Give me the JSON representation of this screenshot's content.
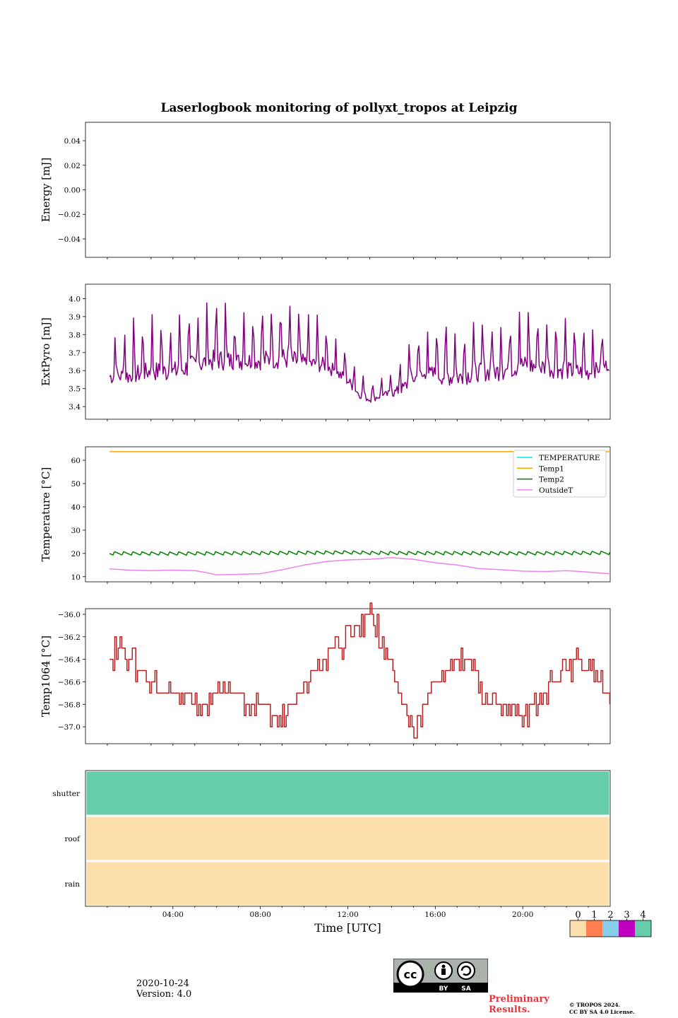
{
  "chart_data": {
    "type": "line",
    "title": "Laserlogbook monitoring of pollyxt_tropos at Leipzig",
    "xlabel": "Time [UTC]",
    "x_ticks": [
      "04:00",
      "08:00",
      "12:00",
      "16:00",
      "20:00"
    ],
    "x_range_hours": [
      0,
      24
    ],
    "panels": [
      {
        "id": "energy",
        "ylabel": "Energy [mJ]",
        "ylim": [
          -0.055,
          0.055
        ],
        "yticks": [
          "0.04",
          "0.02",
          "0.00",
          "−0.02",
          "−0.04"
        ],
        "ytick_values": [
          0.04,
          0.02,
          0.0,
          -0.02,
          -0.04
        ],
        "series": []
      },
      {
        "id": "extpyro",
        "ylabel": "ExtPyro [mJ]",
        "ylim": [
          3.33,
          4.08
        ],
        "yticks": [
          "4.0",
          "3.9",
          "3.8",
          "3.7",
          "3.6",
          "3.5",
          "3.4"
        ],
        "ytick_values": [
          4.0,
          3.9,
          3.8,
          3.7,
          3.6,
          3.5,
          3.4
        ],
        "series": [
          {
            "name": "ExtPyro",
            "color": "#800080",
            "x": [
              1.1,
              2,
              3,
              4,
              5,
              6,
              7,
              8,
              9,
              10,
              11,
              12,
              12.5,
              13,
              13.5,
              14,
              14.5,
              15,
              16,
              17,
              18,
              19,
              20,
              21,
              22,
              23,
              24
            ],
            "y": [
              3.62,
              3.63,
              3.66,
              3.66,
              3.7,
              3.73,
              3.71,
              3.72,
              3.74,
              3.7,
              3.68,
              3.58,
              3.5,
              3.46,
              3.48,
              3.5,
              3.54,
              3.62,
              3.64,
              3.62,
              3.65,
              3.66,
              3.7,
              3.68,
              3.66,
              3.64,
              3.68
            ],
            "amplitude": [
              0.15,
              0.17,
              0.18,
              0.2,
              0.2,
              0.2,
              0.17,
              0.18,
              0.2,
              0.17,
              0.14,
              0.1,
              0.08,
              0.06,
              0.06,
              0.08,
              0.12,
              0.18,
              0.18,
              0.17,
              0.17,
              0.18,
              0.2,
              0.18,
              0.17,
              0.15,
              0.12
            ]
          }
        ]
      },
      {
        "id": "temperature",
        "ylabel": "Temperature [°C]",
        "ylim": [
          7.8,
          65.8
        ],
        "yticks": [
          "60",
          "50",
          "40",
          "30",
          "20",
          "10"
        ],
        "ytick_values": [
          60,
          50,
          40,
          30,
          20,
          10
        ],
        "legend_position": "upper right",
        "series": [
          {
            "name": "TEMPERATURE",
            "color": "#00e5e5",
            "x": [],
            "y": []
          },
          {
            "name": "Temp1",
            "color": "#ffa500",
            "x": [
              1.1,
              24
            ],
            "y": [
              63.7,
              63.7
            ]
          },
          {
            "name": "Temp2",
            "color": "#008000",
            "x": [
              1.1,
              4,
              8,
              11,
              12,
              13,
              14,
              16,
              20,
              24
            ],
            "y": [
              19.7,
              19.6,
              19.8,
              20.0,
              20.1,
              19.9,
              19.8,
              19.8,
              19.7,
              19.9
            ]
          },
          {
            "name": "OutsideT",
            "color": "#ee82ee",
            "x": [
              1.1,
              2,
              3,
              4,
              5,
              5.5,
              6,
              7,
              8,
              9,
              10,
              11,
              12,
              13,
              14,
              15,
              16,
              17,
              18,
              19,
              20,
              21,
              22,
              23,
              24
            ],
            "y": [
              13.4,
              12.8,
              12.6,
              12.8,
              12.6,
              11.8,
              10.8,
              11.0,
              11.3,
              13.0,
              15.0,
              16.5,
              17.2,
              17.5,
              18.2,
              17.5,
              16.0,
              15.0,
              13.5,
              13.0,
              12.4,
              12.2,
              12.6,
              12.0,
              11.2
            ]
          }
        ]
      },
      {
        "id": "temp1064",
        "ylabel": "Temp1064 [°C]",
        "ylim": [
          -37.15,
          -35.95
        ],
        "yticks": [
          "−36.0",
          "−36.2",
          "−36.4",
          "−36.6",
          "−36.8",
          "−37.0"
        ],
        "ytick_values": [
          -36.0,
          -36.2,
          -36.4,
          -36.6,
          -36.8,
          -37.0
        ],
        "series": [
          {
            "name": "Temp1064",
            "color": "#b22222",
            "x": [
              1.1,
              1.5,
              2,
              2.5,
              3,
              3.5,
              4,
              4.5,
              5,
              5.5,
              6,
              6.5,
              7,
              7.5,
              8,
              8.5,
              9,
              9.5,
              10,
              10.5,
              11,
              11.5,
              12,
              12.5,
              13,
              13.5,
              14,
              14.5,
              15,
              15.5,
              16,
              16.5,
              17,
              17.5,
              18,
              18.5,
              19,
              19.5,
              20,
              20.5,
              21,
              21.5,
              22,
              22.5,
              23,
              23.5,
              24
            ],
            "y": [
              -36.4,
              -36.3,
              -36.4,
              -36.5,
              -36.6,
              -36.7,
              -36.7,
              -36.7,
              -36.8,
              -36.8,
              -36.7,
              -36.7,
              -36.7,
              -36.8,
              -36.8,
              -36.9,
              -36.9,
              -36.8,
              -36.6,
              -36.5,
              -36.4,
              -36.3,
              -36.2,
              -36.1,
              -36.0,
              -36.2,
              -36.5,
              -36.8,
              -37.0,
              -36.8,
              -36.6,
              -36.5,
              -36.4,
              -36.4,
              -36.6,
              -36.8,
              -36.8,
              -36.9,
              -36.9,
              -36.8,
              -36.7,
              -36.6,
              -36.5,
              -36.4,
              -36.5,
              -36.6,
              -36.8
            ]
          }
        ]
      },
      {
        "id": "status",
        "ylabel": "",
        "type": "heatmap",
        "rows": [
          "shutter",
          "roof",
          "rain"
        ],
        "row_values": [
          4,
          0,
          0
        ]
      }
    ],
    "colorbar": {
      "ticks": [
        "0",
        "1",
        "2",
        "3",
        "4"
      ],
      "colors": [
        "#fddfab",
        "#ff7f50",
        "#87ceeb",
        "#c000c0",
        "#66cdaa"
      ]
    }
  },
  "footer": {
    "date": "2020-10-24",
    "version": "Version: 4.0",
    "preliminary": "Preliminary Results.",
    "copyright_line1": "© TROPOS 2024.",
    "copyright_line2": "CC BY SA 4.0 License."
  },
  "license_badge": {
    "labels": [
      "BY",
      "SA"
    ]
  }
}
